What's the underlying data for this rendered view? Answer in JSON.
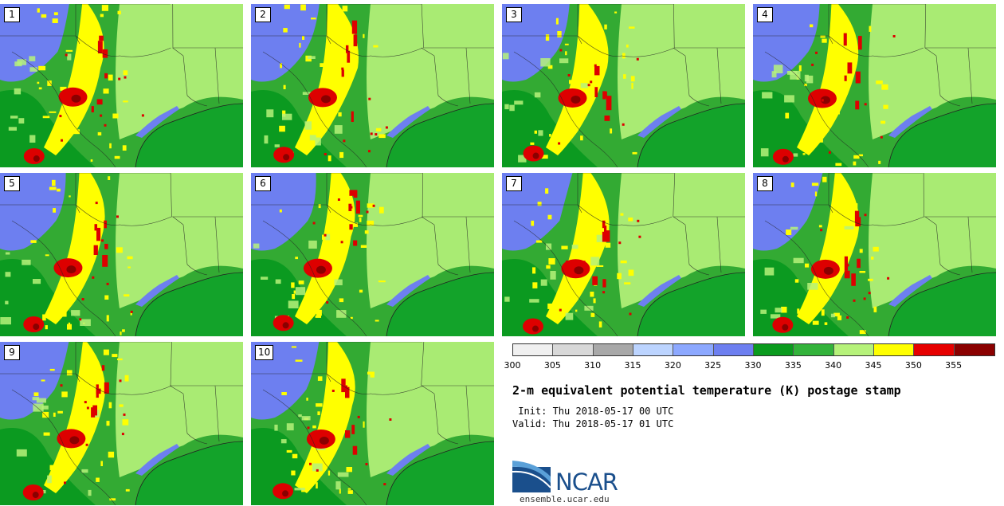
{
  "stamps": [
    {
      "label": "1",
      "hotspot": "major"
    },
    {
      "label": "2",
      "hotspot": "major"
    },
    {
      "label": "3",
      "hotspot": "major"
    },
    {
      "label": "4",
      "hotspot": "major"
    },
    {
      "label": "5",
      "hotspot": "major"
    },
    {
      "label": "6",
      "hotspot": "major"
    },
    {
      "label": "7",
      "hotspot": "major"
    },
    {
      "label": "8",
      "hotspot": "major"
    },
    {
      "label": "9",
      "hotspot": "major"
    },
    {
      "label": "10",
      "hotspot": "major"
    }
  ],
  "colorbar": {
    "colors": [
      "#f0f0f0",
      "#d8d8d8",
      "#a8a8a8",
      "#bcd4ff",
      "#8ca8ff",
      "#6d7ff0",
      "#0a9b1e",
      "#33b33b",
      "#b6f27a",
      "#ffff00",
      "#e60000",
      "#8a0000"
    ],
    "labels": [
      "300",
      "305",
      "310",
      "315",
      "320",
      "325",
      "330",
      "335",
      "340",
      "345",
      "350",
      "355"
    ]
  },
  "title": "2-m equivalent potential temperature (K) postage stamp",
  "init": " Init: Thu 2018-05-17 00 UTC",
  "valid": "Valid: Thu 2018-05-17 01 UTC",
  "logo": {
    "text": "NCAR",
    "url": "ensemble.ucar.edu"
  },
  "map_colors": {
    "land": "#33aa33",
    "dark": "#0b9a20",
    "light": "#b6f27a",
    "yellow": "#ffff00",
    "red": "#dd0000",
    "dark_red": "#8a0000",
    "blue": "#6d7ff0",
    "gulf": "#13a32a",
    "border": "#222222"
  }
}
